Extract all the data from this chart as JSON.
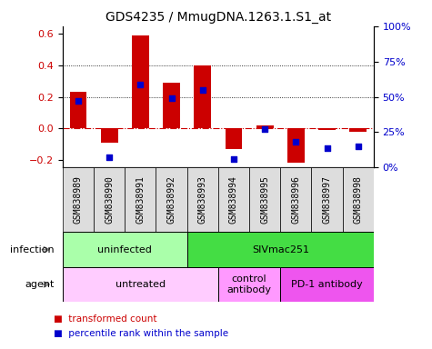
{
  "title": "GDS4235 / MmugDNA.1263.1.S1_at",
  "samples": [
    "GSM838989",
    "GSM838990",
    "GSM838991",
    "GSM838992",
    "GSM838993",
    "GSM838994",
    "GSM838995",
    "GSM838996",
    "GSM838997",
    "GSM838998"
  ],
  "bar_values": [
    0.23,
    -0.09,
    0.59,
    0.29,
    0.4,
    -0.13,
    0.02,
    -0.22,
    -0.01,
    -0.02
  ],
  "dot_values": [
    0.47,
    0.07,
    0.59,
    0.49,
    0.55,
    0.06,
    0.27,
    0.18,
    0.14,
    0.15
  ],
  "ylim": [
    -0.25,
    0.65
  ],
  "y2lim": [
    0,
    1.0
  ],
  "yticks": [
    -0.2,
    0.0,
    0.2,
    0.4,
    0.6
  ],
  "y2ticks": [
    0.0,
    0.25,
    0.5,
    0.75,
    1.0
  ],
  "y2ticklabels": [
    "0%",
    "25%",
    "50%",
    "75%",
    "100%"
  ],
  "dotted_lines": [
    0.2,
    0.4
  ],
  "bar_color": "#CC0000",
  "dot_color": "#0000CC",
  "zero_line_color": "#CC0000",
  "infection_groups": [
    {
      "label": "uninfected",
      "start": 0,
      "end": 4,
      "color": "#AAFFAA"
    },
    {
      "label": "SIVmac251",
      "start": 4,
      "end": 10,
      "color": "#44DD44"
    }
  ],
  "agent_groups": [
    {
      "label": "untreated",
      "start": 0,
      "end": 5,
      "color": "#FFCCFF"
    },
    {
      "label": "control\nantibody",
      "start": 5,
      "end": 7,
      "color": "#FF99FF"
    },
    {
      "label": "PD-1 antibody",
      "start": 7,
      "end": 10,
      "color": "#EE55EE"
    }
  ],
  "title_fontsize": 10,
  "tick_fontsize": 8,
  "sample_fontsize": 7,
  "annot_fontsize": 8
}
